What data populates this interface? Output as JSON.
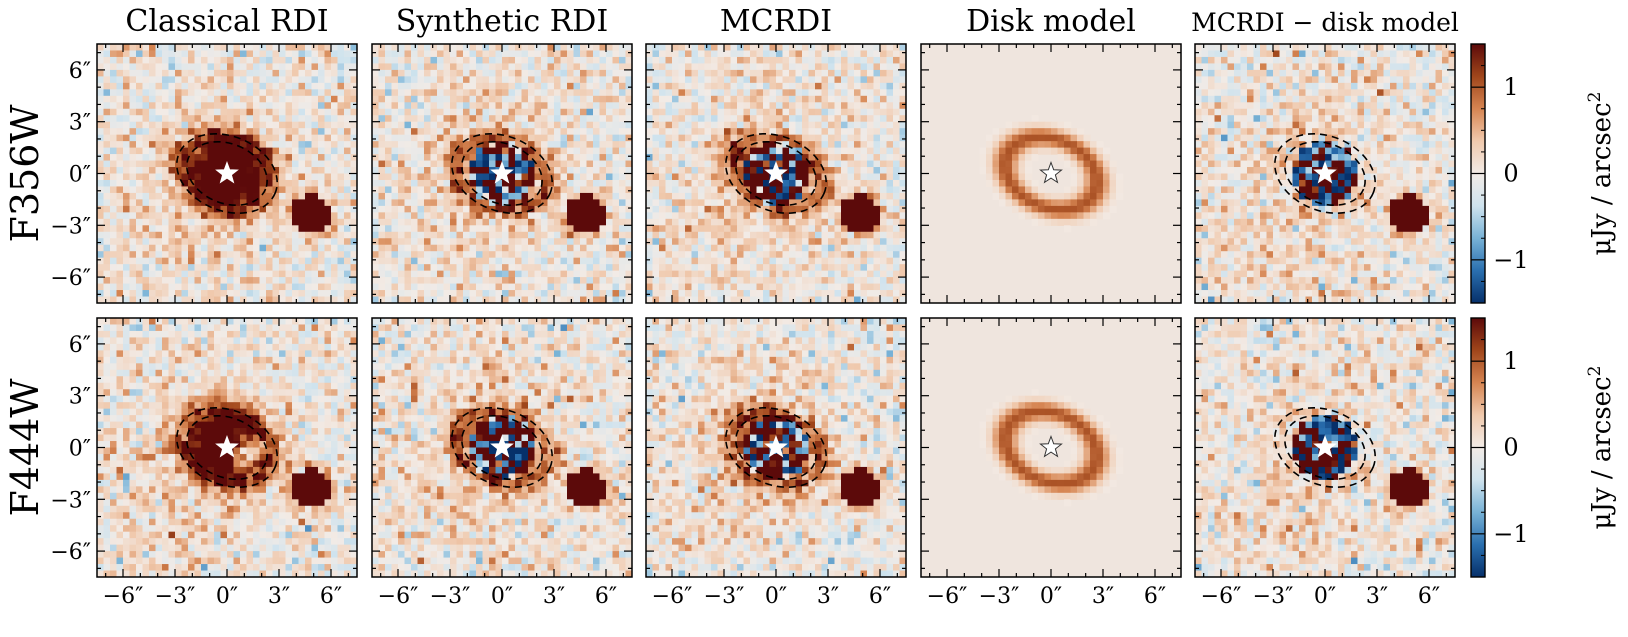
{
  "figure": {
    "columns": [
      {
        "id": "classical",
        "title": "Classical RDI"
      },
      {
        "id": "synthetic",
        "title": "Synthetic RDI"
      },
      {
        "id": "mcrdi",
        "title": "MCRDI"
      },
      {
        "id": "disk",
        "title": "Disk model"
      },
      {
        "id": "residual",
        "title": "MCRDI − disk model"
      }
    ],
    "rows": [
      {
        "id": "f356w",
        "label": "F356W"
      },
      {
        "id": "f444w",
        "label": "F444W"
      }
    ],
    "axis_ticks": [
      {
        "value": -6,
        "label": "−6″"
      },
      {
        "value": -3,
        "label": "−3″"
      },
      {
        "value": 0,
        "label": "0″"
      },
      {
        "value": 3,
        "label": "3″"
      },
      {
        "value": 6,
        "label": "6″"
      }
    ],
    "axis_range": [
      -7.5,
      7.5
    ],
    "colorbar": {
      "label": "μJy / arcsec",
      "label_superscript": "2",
      "range": [
        -1.5,
        1.5
      ],
      "ticks": [
        {
          "value": 1,
          "label": "1"
        },
        {
          "value": 0,
          "label": "0"
        },
        {
          "value": -1,
          "label": "−1"
        }
      ],
      "colormap": [
        "#06306a",
        "#2a6faf",
        "#78b2d6",
        "#cfe3ee",
        "#f2ebe6",
        "#f0c9ad",
        "#d68552",
        "#a0461b",
        "#5c0a0a"
      ]
    },
    "disk_contour": {
      "center": [
        0,
        0
      ],
      "semi_major_arcsec": [
        2.4,
        3.0
      ],
      "axis_ratio": 0.72,
      "position_angle_deg": -22,
      "style": "dashed"
    },
    "star_marker": {
      "position": [
        0,
        0
      ],
      "symbol": "star"
    },
    "companion_source": {
      "position": [
        4.8,
        -2.4
      ]
    }
  }
}
